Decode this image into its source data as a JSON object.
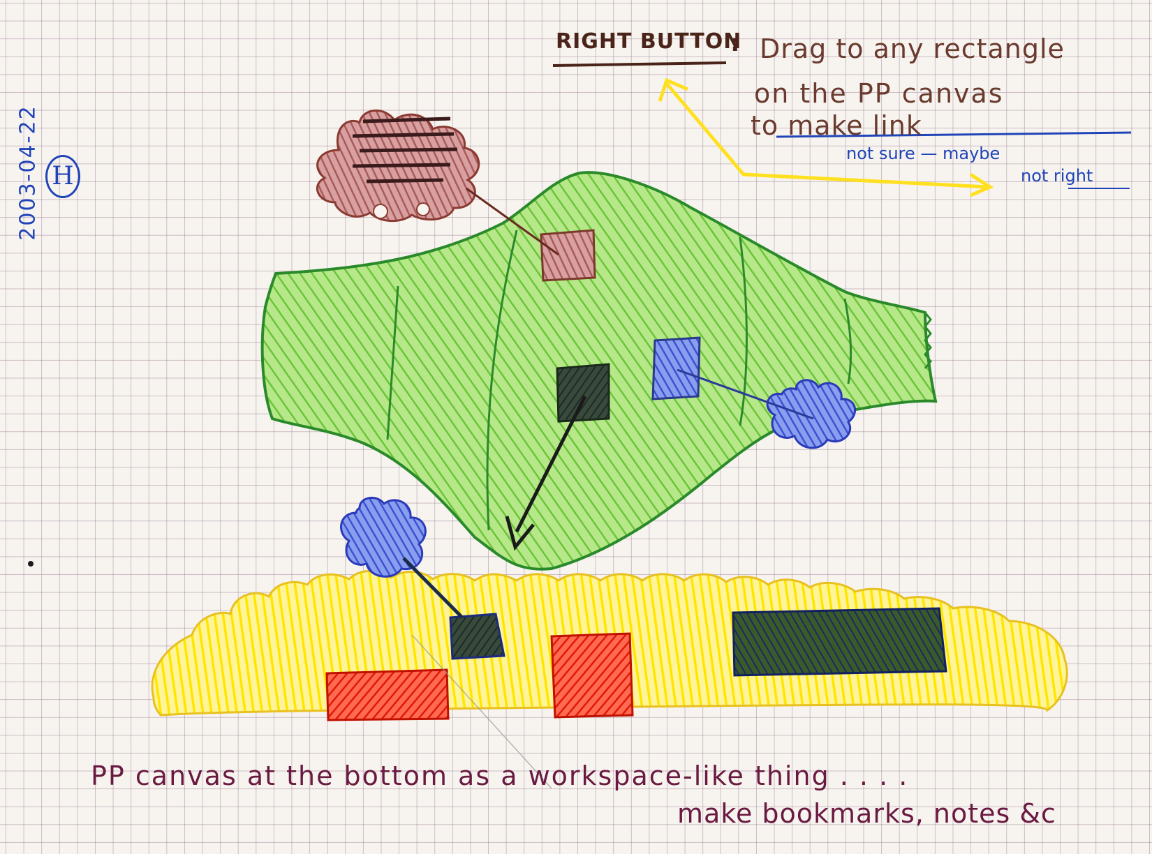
{
  "meta": {
    "date": "2003-04-22",
    "author_initial": "H"
  },
  "right_button_note": {
    "title": "RIGHT BUTTON",
    "colon": ":",
    "line1": "Drag to any rectangle",
    "line2": "on the PP canvas",
    "line3": "to make link"
  },
  "uncertainty_note": {
    "line1": "not sure — maybe",
    "line2": "not right"
  },
  "bottom_caption": {
    "line1": "PP canvas at the bottom as a workspace-like thing . . . .",
    "line2": "make bookmarks, notes &c"
  },
  "colors": {
    "green_fill": "#8fd45a",
    "green_outline": "#2a8a2a",
    "yellow_fill": "#ffe81a",
    "brown_cloud": "#b06a6a",
    "blue_cloud": "#4a64d8",
    "red_rect": "#f02a10",
    "arrow_yellow": "#ffe020"
  }
}
